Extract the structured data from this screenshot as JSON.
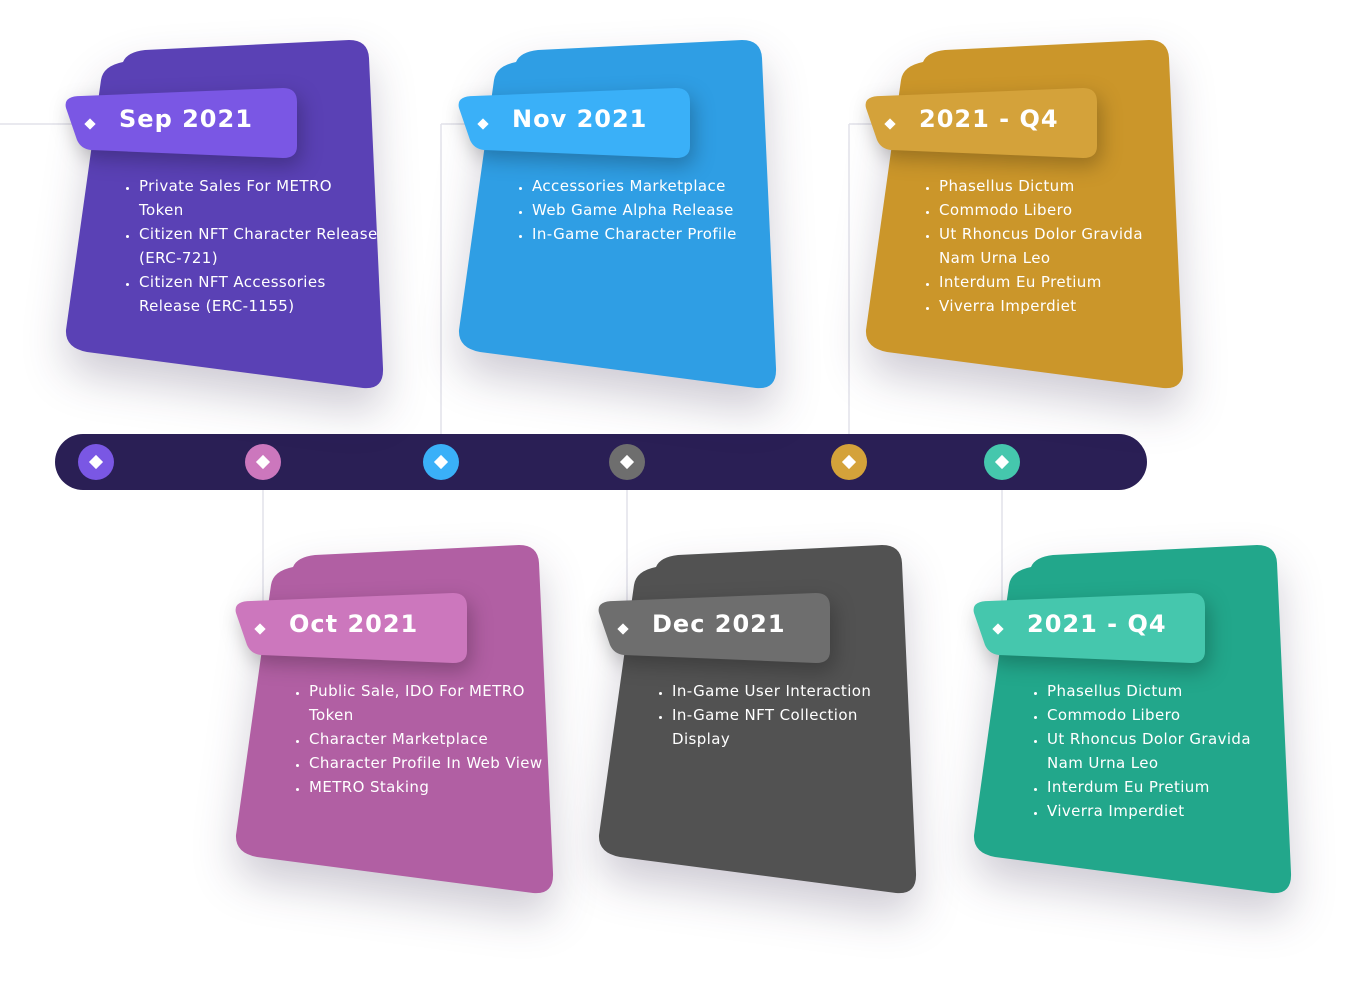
{
  "milestones": [
    {
      "title": "Sep 2021",
      "color": "#5a41b5",
      "tab_color": "#7a57e4",
      "items": [
        "Private Sales For METRO Token",
        "Citizen NFT Character Release (ERC-721)",
        "Citizen NFT Accessories Release (ERC-1155)"
      ]
    },
    {
      "title": "Oct 2021",
      "color": "#b15fa3",
      "tab_color": "#cc77bd",
      "items": [
        "Public Sale, IDO For METRO Token",
        "Character Marketplace",
        "Character Profile In Web View",
        "METRO Staking"
      ]
    },
    {
      "title": "Nov 2021",
      "color": "#2f9ee4",
      "tab_color": "#3ab0f8",
      "items": [
        "Accessories Marketplace",
        "Web Game Alpha Release",
        "In-Game Character Profile"
      ]
    },
    {
      "title": "Dec 2021",
      "color": "#525252",
      "tab_color": "#6e6e6e",
      "items": [
        "In-Game User Interaction",
        "In-Game NFT Collection Display"
      ]
    },
    {
      "title": "2021 - Q4",
      "color": "#cb962a",
      "tab_color": "#d4a23a",
      "items": [
        "Phasellus Dictum",
        "Commodo Libero",
        "Ut Rhoncus Dolor Gravida Nam Urna Leo",
        "Interdum Eu Pretium",
        "Viverra Imperdiet"
      ]
    },
    {
      "title": "2021 - Q4",
      "color": "#22a78b",
      "tab_color": "#45c7ad",
      "items": [
        "Phasellus Dictum",
        "Commodo Libero",
        "Ut Rhoncus Dolor Gravida Nam Urna Leo",
        "Interdum Eu Pretium",
        "Viverra Imperdiet"
      ]
    }
  ],
  "track_color": "#2a1f55"
}
